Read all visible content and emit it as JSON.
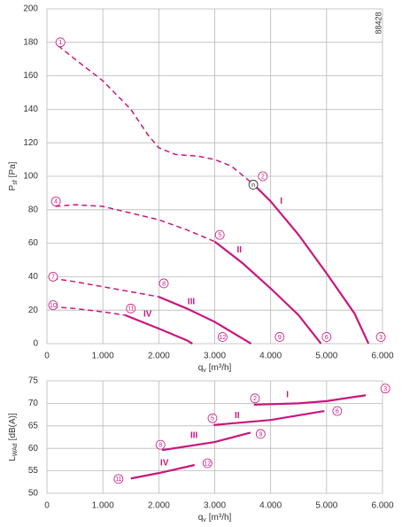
{
  "side_note": "88428",
  "chart_data": [
    {
      "type": "line",
      "color": "#c8177f",
      "grid": true,
      "y_label": {
        "main": "P",
        "sub": "sf",
        "unit": "[Pa]"
      },
      "x_label": {
        "main": "q",
        "sub": "v",
        "unit": "[m³/h]"
      },
      "xlim": [
        0,
        6000
      ],
      "ylim": [
        0,
        200
      ],
      "xticks": [
        0,
        {
          "value": 1000,
          "label": "1.000"
        },
        {
          "value": 2000,
          "label": "2.000"
        },
        {
          "value": 3000,
          "label": "3.000"
        },
        {
          "value": 4000,
          "label": "4.000"
        },
        {
          "value": 5000,
          "label": "5.000"
        },
        {
          "value": 6000,
          "label": "6.000"
        }
      ],
      "yticks": [
        0,
        20,
        40,
        60,
        80,
        100,
        120,
        140,
        160,
        180,
        200
      ],
      "series": [
        {
          "name": "I",
          "label_at": [
            4190,
            85
          ],
          "segments": [
            {
              "style": "dashed",
              "x": [
                200,
                500,
                1000,
                1500,
                1800,
                2000,
                2300,
                2700,
                3000,
                3300,
                3700
              ],
              "values": [
                178,
                170,
                157,
                140,
                125,
                117,
                113,
                112,
                110,
                106,
                95
              ]
            },
            {
              "style": "solid",
              "x": [
                3700,
                4000,
                4500,
                5000,
                5500,
                5750
              ],
              "values": [
                95,
                85,
                65,
                42,
                18,
                0
              ]
            }
          ]
        },
        {
          "name": "II",
          "label_at": [
            3440,
            56
          ],
          "segments": [
            {
              "style": "dashed",
              "x": [
                150,
                500,
                1000,
                1500,
                2000,
                2500,
                3000
              ],
              "values": [
                82,
                83,
                82,
                78,
                74,
                68,
                61
              ]
            },
            {
              "style": "solid",
              "x": [
                3000,
                3500,
                4000,
                4500,
                4900
              ],
              "values": [
                61,
                48,
                33,
                17,
                0
              ]
            }
          ]
        },
        {
          "name": "III",
          "label_at": [
            2580,
            25
          ],
          "segments": [
            {
              "style": "dashed",
              "x": [
                100,
                500,
                1000,
                1500,
                2000
              ],
              "values": [
                39,
                37,
                34,
                31,
                28
              ]
            },
            {
              "style": "solid",
              "x": [
                2000,
                2500,
                3000,
                3500,
                3650
              ],
              "values": [
                28,
                21,
                13,
                3,
                0
              ]
            }
          ]
        },
        {
          "name": "IV",
          "label_at": [
            1800,
            17.5
          ],
          "segments": [
            {
              "style": "dashed",
              "x": [
                100,
                500,
                1000,
                1400
              ],
              "values": [
                22,
                21,
                19,
                17
              ]
            },
            {
              "style": "solid",
              "x": [
                1400,
                2000,
                2500,
                2600
              ],
              "values": [
                17,
                9,
                2,
                0
              ]
            }
          ]
        }
      ],
      "points": [
        {
          "text": "1",
          "x": 240,
          "y": 180
        },
        {
          "text": "2",
          "x": 3860,
          "y": 100
        },
        {
          "text": "n",
          "x": 3690,
          "y": 95,
          "color": "#222"
        },
        {
          "text": "3",
          "x": 5970,
          "y": 4
        },
        {
          "text": "4",
          "x": 160,
          "y": 85
        },
        {
          "text": "5",
          "x": 3090,
          "y": 65
        },
        {
          "text": "6",
          "x": 5000,
          "y": 4
        },
        {
          "text": "7",
          "x": 110,
          "y": 40
        },
        {
          "text": "8",
          "x": 2090,
          "y": 36
        },
        {
          "text": "9",
          "x": 4160,
          "y": 4
        },
        {
          "text": "10",
          "x": 110,
          "y": 23
        },
        {
          "text": "11",
          "x": 1500,
          "y": 21
        },
        {
          "text": "12",
          "x": 3140,
          "y": 4
        }
      ]
    },
    {
      "type": "line",
      "color": "#c8177f",
      "grid": true,
      "y_label": {
        "main": "L",
        "sub": "WAd",
        "unit": "[dB(A)]"
      },
      "x_label": {
        "main": "q",
        "sub": "v",
        "unit": "[m³/h]"
      },
      "xlim": [
        0,
        6000
      ],
      "ylim": [
        50,
        75
      ],
      "xticks": [
        0,
        {
          "value": 1000,
          "label": "1.000"
        },
        {
          "value": 2000,
          "label": "2.000"
        },
        {
          "value": 3000,
          "label": "3.000"
        },
        {
          "value": 4000,
          "label": "4.000"
        },
        {
          "value": 5000,
          "label": "5.000"
        },
        {
          "value": 6000,
          "label": "6.000"
        }
      ],
      "yticks": [
        50,
        55,
        60,
        65,
        70,
        75
      ],
      "series": [
        {
          "name": "I",
          "label_at": [
            4300,
            71.9
          ],
          "segments": [
            {
              "style": "solid",
              "x": [
                3700,
                4500,
                5000,
                5700
              ],
              "values": [
                69.7,
                70,
                70.5,
                71.8
              ]
            }
          ]
        },
        {
          "name": "II",
          "label_at": [
            3400,
            67.3
          ],
          "segments": [
            {
              "style": "solid",
              "x": [
                2980,
                4000,
                4960
              ],
              "values": [
                65.2,
                66.3,
                68.3
              ]
            }
          ]
        },
        {
          "name": "III",
          "label_at": [
            2630,
            62.8
          ],
          "segments": [
            {
              "style": "solid",
              "x": [
                2060,
                3000,
                3640
              ],
              "values": [
                59.6,
                61.4,
                63.5
              ]
            }
          ]
        },
        {
          "name": "IV",
          "label_at": [
            2100,
            56.7
          ],
          "segments": [
            {
              "style": "solid",
              "x": [
                1500,
                2000,
                2640
              ],
              "values": [
                53.3,
                54.5,
                56.3
              ]
            }
          ]
        }
      ],
      "points": [
        {
          "text": "2",
          "x": 3720,
          "y": 71.1
        },
        {
          "text": "3",
          "x": 6050,
          "y": 73.3
        },
        {
          "text": "5",
          "x": 2960,
          "y": 66.7
        },
        {
          "text": "6",
          "x": 5190,
          "y": 68.3
        },
        {
          "text": "8",
          "x": 2030,
          "y": 60.8
        },
        {
          "text": "9",
          "x": 3820,
          "y": 63.2
        },
        {
          "text": "11",
          "x": 1280,
          "y": 53.2
        },
        {
          "text": "12",
          "x": 2870,
          "y": 56.7
        }
      ]
    }
  ]
}
